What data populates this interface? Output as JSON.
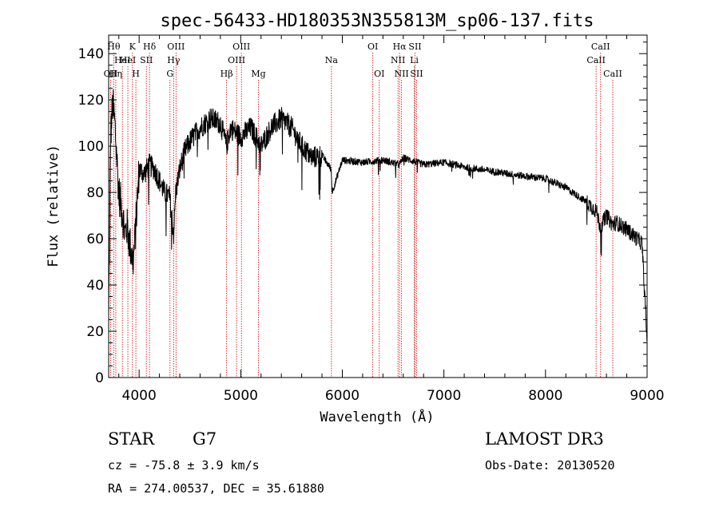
{
  "chart_data": {
    "type": "line",
    "title": "spec-56433-HD180353N355813M_sp06-137.fits",
    "xlabel": "Wavelength (Å)",
    "ylabel": "Flux (relative)",
    "xlim": [
      3700,
      9000
    ],
    "ylim": [
      0,
      148
    ],
    "x_ticks": [
      4000,
      5000,
      6000,
      7000,
      8000,
      9000
    ],
    "y_ticks": [
      0,
      20,
      40,
      60,
      80,
      100,
      120,
      140
    ],
    "series": [
      {
        "name": "flux",
        "anchors_x": [
          3700,
          3720,
          3740,
          3760,
          3780,
          3800,
          3820,
          3840,
          3860,
          3880,
          3900,
          3920,
          3940,
          3960,
          3980,
          4000,
          4050,
          4100,
          4150,
          4200,
          4250,
          4300,
          4340,
          4360,
          4400,
          4450,
          4500,
          4600,
          4700,
          4800,
          4860,
          4900,
          5000,
          5100,
          5200,
          5300,
          5400,
          5500,
          5600,
          5700,
          5800,
          5890,
          5900,
          6000,
          6200,
          6400,
          6563,
          6600,
          6800,
          7000,
          7200,
          7500,
          7800,
          8000,
          8200,
          8400,
          8500,
          8540,
          8600,
          8662,
          8700,
          8800,
          8900,
          8950,
          9000
        ],
        "anchors_y": [
          25,
          105,
          118,
          110,
          95,
          80,
          75,
          70,
          62,
          65,
          60,
          55,
          50,
          60,
          75,
          90,
          88,
          92,
          90,
          85,
          80,
          78,
          62,
          80,
          90,
          98,
          102,
          108,
          112,
          110,
          100,
          108,
          104,
          108,
          100,
          108,
          112,
          108,
          100,
          95,
          96,
          90,
          80,
          94,
          93,
          94,
          92,
          95,
          92,
          93,
          91,
          89,
          87,
          86,
          82,
          76,
          72,
          65,
          70,
          66,
          67,
          64,
          60,
          58,
          15
        ]
      }
    ],
    "spectral_lines": [
      {
        "wavelength": 3720,
        "label": "OII",
        "row": 3
      },
      {
        "wavelength": 3750,
        "label": "Hθ",
        "row": 1
      },
      {
        "wavelength": 3770,
        "label": "Hη",
        "row": 3
      },
      {
        "wavelength": 3835,
        "label": "HeI",
        "row": 2
      },
      {
        "wavelength": 3889,
        "label": "HeI",
        "row": 2
      },
      {
        "wavelength": 3934,
        "label": "K",
        "row": 1
      },
      {
        "wavelength": 3968,
        "label": "H",
        "row": 3
      },
      {
        "wavelength": 4071,
        "label": "SII",
        "row": 2
      },
      {
        "wavelength": 4102,
        "label": "Hδ",
        "row": 1
      },
      {
        "wavelength": 4304,
        "label": "G",
        "row": 3
      },
      {
        "wavelength": 4340,
        "label": "Hγ",
        "row": 2
      },
      {
        "wavelength": 4363,
        "label": "OIII",
        "row": 1
      },
      {
        "wavelength": 4861,
        "label": "Hβ",
        "row": 3
      },
      {
        "wavelength": 4959,
        "label": "OIII",
        "row": 2
      },
      {
        "wavelength": 5007,
        "label": "OIII",
        "row": 1
      },
      {
        "wavelength": 5175,
        "label": "Mg",
        "row": 3
      },
      {
        "wavelength": 5893,
        "label": "Na",
        "row": 2
      },
      {
        "wavelength": 6300,
        "label": "OI",
        "row": 1
      },
      {
        "wavelength": 6364,
        "label": "OI",
        "row": 3
      },
      {
        "wavelength": 6548,
        "label": "NII",
        "row": 2
      },
      {
        "wavelength": 6563,
        "label": "Hα",
        "row": 1
      },
      {
        "wavelength": 6583,
        "label": "NII",
        "row": 3
      },
      {
        "wavelength": 6708,
        "label": "Li",
        "row": 2
      },
      {
        "wavelength": 6716,
        "label": "SII",
        "row": 1
      },
      {
        "wavelength": 6731,
        "label": "SII",
        "row": 3
      },
      {
        "wavelength": 8498,
        "label": "CaII",
        "row": 2
      },
      {
        "wavelength": 8542,
        "label": "CaII",
        "row": 1
      },
      {
        "wavelength": 8662,
        "label": "CaII",
        "row": 3
      }
    ]
  },
  "info": {
    "object_class": "STAR",
    "subclass": "G7",
    "survey": "LAMOST DR3",
    "redshift": "cz = -75.8 ± 3.9 km/s",
    "obs_date": "Obs-Date: 20130520",
    "coords": "RA = 274.00537, DEC =  35.61880"
  }
}
